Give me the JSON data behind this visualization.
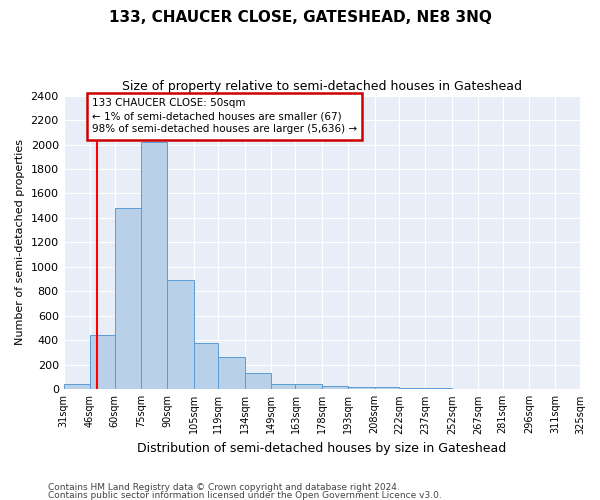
{
  "title": "133, CHAUCER CLOSE, GATESHEAD, NE8 3NQ",
  "subtitle": "Size of property relative to semi-detached houses in Gateshead",
  "xlabel": "Distribution of semi-detached houses by size in Gateshead",
  "ylabel": "Number of semi-detached properties",
  "bin_labels": [
    "31sqm",
    "46sqm",
    "60sqm",
    "75sqm",
    "90sqm",
    "105sqm",
    "119sqm",
    "134sqm",
    "149sqm",
    "163sqm",
    "178sqm",
    "193sqm",
    "208sqm",
    "222sqm",
    "237sqm",
    "252sqm",
    "267sqm",
    "281sqm",
    "296sqm",
    "311sqm",
    "325sqm"
  ],
  "bin_edges": [
    31,
    46,
    60,
    75,
    90,
    105,
    119,
    134,
    149,
    163,
    178,
    193,
    208,
    222,
    237,
    252,
    267,
    281,
    296,
    311,
    325
  ],
  "bar_heights": [
    45,
    440,
    1480,
    2020,
    890,
    375,
    260,
    130,
    40,
    40,
    30,
    20,
    15,
    10,
    8,
    5,
    5,
    5,
    5,
    5
  ],
  "bar_color": "#b8d0e8",
  "bar_edge_color": "#5b9bd5",
  "red_line_x": 50,
  "annotation_text": "133 CHAUCER CLOSE: 50sqm\n← 1% of semi-detached houses are smaller (67)\n98% of semi-detached houses are larger (5,636) →",
  "annotation_box_color": "#ffffff",
  "annotation_box_edge_color": "#cc0000",
  "ylim": [
    0,
    2400
  ],
  "yticks": [
    0,
    200,
    400,
    600,
    800,
    1000,
    1200,
    1400,
    1600,
    1800,
    2000,
    2200,
    2400
  ],
  "footer_line1": "Contains HM Land Registry data © Crown copyright and database right 2024.",
  "footer_line2": "Contains public sector information licensed under the Open Government Licence v3.0.",
  "fig_background_color": "#ffffff",
  "axes_background_color": "#e8eef7"
}
